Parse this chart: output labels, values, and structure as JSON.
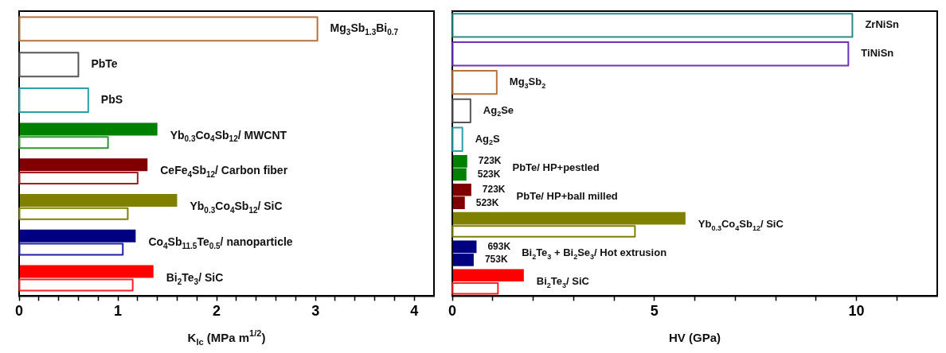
{
  "chart_data": [
    {
      "type": "bar",
      "orientation": "horizontal",
      "categories": [
        "Mg$_{3}$Sb$_{1.3}$Bi$_{0.7}$",
        "PbTe",
        "PbS",
        "Yb$_{0.3}$Co$_{4}$Sb$_{12}$/ MWCNT",
        "CeFe$_{4}$Sb$_{12}$/ Carbon fiber",
        "Yb$_{0.3}$Co$_{4}$Sb$_{12}$/ SiC",
        "Co$_{4}$Sb$_{11.5}$Te$_{0.5}$/ nanoparticle",
        "Bi$_{2}$Te$_{3}$/ SiC"
      ],
      "series": [
        {
          "colors": [
            "#b8733a",
            "#555555",
            "#2aa0a8",
            "#008000",
            "#800000",
            "#808000",
            "#000080",
            "#ff0000"
          ],
          "values": [
            null,
            null,
            null,
            1.4,
            1.3,
            1.6,
            1.18,
            1.36
          ]
        },
        {
          "line_style": "solid",
          "colors": [
            "#b8733a",
            "#555555",
            "#2aa0a8",
            "#2a9a2a",
            "#a02020",
            "#808000",
            "#2020a0",
            "#ff2020"
          ],
          "values": [
            3.02,
            0.6,
            0.7,
            0.9,
            1.2,
            1.1,
            1.05,
            1.15
          ]
        }
      ],
      "xlim": [
        0,
        4.2
      ],
      "xticks": [
        0,
        {
          "value": 0.2,
          "label": null
        },
        {
          "value": 0.4,
          "label": null
        },
        {
          "value": 0.6,
          "label": null
        },
        {
          "value": 0.8,
          "label": null
        },
        1,
        {
          "value": 1.2,
          "label": null
        },
        {
          "value": 1.4,
          "label": null
        },
        {
          "value": 1.6,
          "label": null
        },
        {
          "value": 1.8,
          "label": null
        },
        2,
        {
          "value": 2.2,
          "label": null
        },
        {
          "value": 2.4,
          "label": null
        },
        {
          "value": 2.6,
          "label": null
        },
        {
          "value": 2.8,
          "label": null
        },
        3,
        {
          "value": 3.2,
          "label": null
        },
        {
          "value": 3.4,
          "label": null
        },
        {
          "value": 3.6,
          "label": null
        },
        {
          "value": 3.8,
          "label": null
        },
        4
      ],
      "xlabel": "K$_{Ic}$ (MPa m$^{1/2}$)",
      "grid": false,
      "legend": false,
      "tick_labels": "x"
    },
    {
      "type": "bar",
      "orientation": "horizontal",
      "categories": [
        "ZrNiSn",
        "TiNiSn",
        "Mg$_{3}$Sb$_{2}$",
        "Ag$_{2}$Se",
        "Ag$_{2}$S",
        "PbTe/ HP+pestled",
        "PbTe/ HP+ball milled",
        "Yb$_{0.3}$Co$_{4}$Sb$_{12}$/ SiC",
        "Bi$_{2}$Te$_{3}$ + Bi$_{2}$Se$_{3}$/ Hot extrusion",
        "Bi$_{2}$Te$_{3}$/ SiC"
      ],
      "series": [
        {
          "colors": [
            "#2a8a8a",
            "#7030c0",
            "#b8733a",
            "#555555",
            "#2aa0a8",
            "#008000",
            "#800000",
            "#808000",
            "#000080",
            "#ff0000"
          ],
          "values": [
            null,
            null,
            null,
            null,
            null,
            0.37,
            0.47,
            5.77,
            0.6,
            1.77
          ]
        },
        {
          "colors": [
            "#2a8a8a",
            "#7030c0",
            "#b8733a",
            "#555555",
            "#2aa0a8",
            "#008000",
            "#800000",
            "#808000",
            "#000080",
            "#ff0000"
          ],
          "values": [
            null,
            null,
            null,
            null,
            null,
            0.35,
            0.31,
            null,
            0.53,
            null
          ]
        },
        {
          "line_style": "solid",
          "colors": [
            "#2a8a8a",
            "#7030c0",
            "#b8733a",
            "#555555",
            "#2aa0a8",
            "#008000",
            "#800000",
            "#808000",
            "#000080",
            "#ff2020"
          ],
          "values": [
            9.9,
            9.8,
            1.1,
            0.45,
            0.25,
            null,
            null,
            4.52,
            null,
            1.13
          ]
        }
      ],
      "annotations": [
        {
          "text": "723K",
          "x": 0.37,
          "y": "PbTe/ HP+pestled"
        },
        {
          "text": "523K",
          "x": 0.35,
          "y": "PbTe/ HP+pestled"
        },
        {
          "text": "723K",
          "x": 0.47,
          "y": "PbTe/ HP+ball milled"
        },
        {
          "text": "523K",
          "x": 0.31,
          "y": "PbTe/ HP+ball milled"
        },
        {
          "text": "693K",
          "x": 0.6,
          "y": "Bi$_{2}$Te$_{3}$ + Bi$_{2}$Se$_{3}$/ Hot extrusion"
        },
        {
          "text": "753K",
          "x": 0.53,
          "y": "Bi$_{2}$Te$_{3}$ + Bi$_{2}$Se$_{3}$/ Hot extrusion"
        }
      ],
      "xlim": [
        0,
        12
      ],
      "xticks": [
        0,
        {
          "value": 1,
          "label": null
        },
        {
          "value": 2,
          "label": null
        },
        {
          "value": 3,
          "label": null
        },
        {
          "value": 4,
          "label": null
        },
        5,
        {
          "value": 6,
          "label": null
        },
        {
          "value": 7,
          "label": null
        },
        {
          "value": 8,
          "label": null
        },
        {
          "value": 9,
          "label": null
        },
        10,
        {
          "value": 11,
          "label": null
        }
      ],
      "xlabel": "HV (GPa)",
      "grid": false,
      "legend": false,
      "tick_labels": "x"
    }
  ]
}
